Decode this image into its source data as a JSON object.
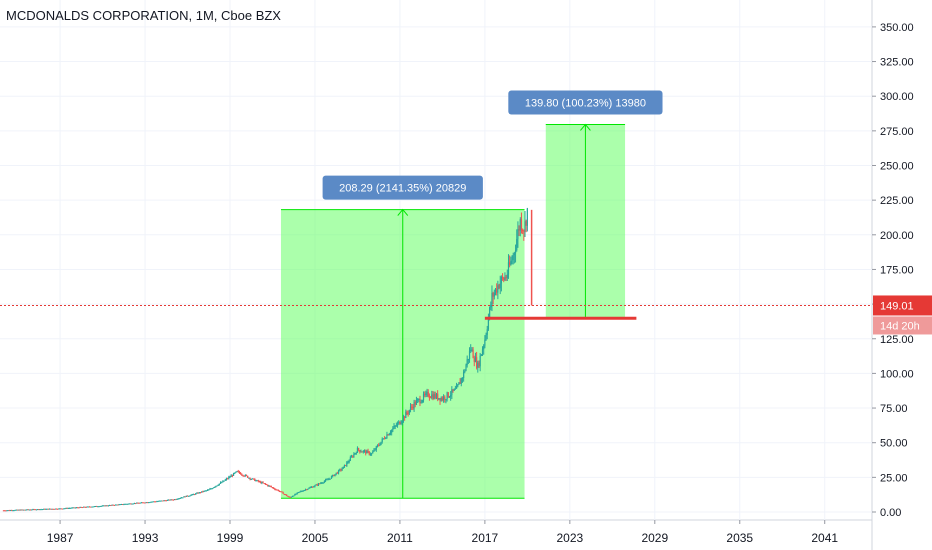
{
  "chart_data": {
    "type": "candlestick",
    "title": "MCDONALDS CORPORATION, 1M, Cboe BZX",
    "y_ticks": [
      "0.00",
      "25.00",
      "50.00",
      "75.00",
      "100.00",
      "125.00",
      "150.00",
      "175.00",
      "200.00",
      "225.00",
      "250.00",
      "275.00",
      "300.00",
      "325.00",
      "350.00"
    ],
    "x_ticks": [
      "1987",
      "1993",
      "1999",
      "2005",
      "2011",
      "2017",
      "2023",
      "2029",
      "2035",
      "2041"
    ],
    "ylim": [
      0,
      360
    ],
    "xlim": [
      1983,
      2044.5
    ],
    "price": [
      {
        "x": 1983.0,
        "y": 1.2
      },
      {
        "x": 1987.0,
        "y": 2.5
      },
      {
        "x": 1990.0,
        "y": 4.5
      },
      {
        "x": 1993.0,
        "y": 7.0
      },
      {
        "x": 1995.0,
        "y": 9.0
      },
      {
        "x": 1996.5,
        "y": 13.0
      },
      {
        "x": 1997.5,
        "y": 16.0
      },
      {
        "x": 1998.5,
        "y": 22.0
      },
      {
        "x": 1999.5,
        "y": 29.0
      },
      {
        "x": 2000.5,
        "y": 24.0
      },
      {
        "x": 2001.5,
        "y": 20.0
      },
      {
        "x": 2002.5,
        "y": 15.0
      },
      {
        "x": 2003.2,
        "y": 10.5
      },
      {
        "x": 2004.0,
        "y": 15.0
      },
      {
        "x": 2005.0,
        "y": 19.0
      },
      {
        "x": 2006.0,
        "y": 24.0
      },
      {
        "x": 2007.0,
        "y": 32.0
      },
      {
        "x": 2008.0,
        "y": 45.0
      },
      {
        "x": 2009.0,
        "y": 42.0
      },
      {
        "x": 2010.0,
        "y": 55.0
      },
      {
        "x": 2011.0,
        "y": 65.0
      },
      {
        "x": 2012.0,
        "y": 78.0
      },
      {
        "x": 2013.0,
        "y": 85.0
      },
      {
        "x": 2014.0,
        "y": 82.0
      },
      {
        "x": 2015.0,
        "y": 88.0
      },
      {
        "x": 2015.5,
        "y": 100.0
      },
      {
        "x": 2016.0,
        "y": 118.0
      },
      {
        "x": 2016.5,
        "y": 105.0
      },
      {
        "x": 2017.0,
        "y": 125.0
      },
      {
        "x": 2017.5,
        "y": 155.0
      },
      {
        "x": 2018.0,
        "y": 165.0
      },
      {
        "x": 2018.5,
        "y": 170.0
      },
      {
        "x": 2019.0,
        "y": 185.0
      },
      {
        "x": 2019.5,
        "y": 210.0
      },
      {
        "x": 2019.8,
        "y": 205.0
      },
      {
        "x": 2020.0,
        "y": 218.0
      },
      {
        "x": 2020.3,
        "y": 149.01
      }
    ],
    "measurements": [
      {
        "label": "208.29 (2141.35%) 20829",
        "from": {
          "x": 2002.6,
          "y": 9.9
        },
        "to_y": 218.2,
        "x_end": 2019.8
      },
      {
        "label": "139.80 (100.23%) 13980",
        "from": {
          "x": 2021.3,
          "y": 139.8
        },
        "to_y": 279.6,
        "x_end": 2026.9
      }
    ],
    "support_line": {
      "y": 139.8,
      "x_from": 2017.0,
      "x_to": 2027.7
    },
    "current_price": {
      "value": 149.01,
      "label": "149.01",
      "countdown": "14d 20h"
    },
    "colors": {
      "up": "#26a69a",
      "down": "#ef5350",
      "zone_fill": "#66ff66",
      "zone_edge": "#00e600",
      "label_bg": "#5b8ac6",
      "price_line": "#e53935",
      "support": "#e53935"
    }
  }
}
